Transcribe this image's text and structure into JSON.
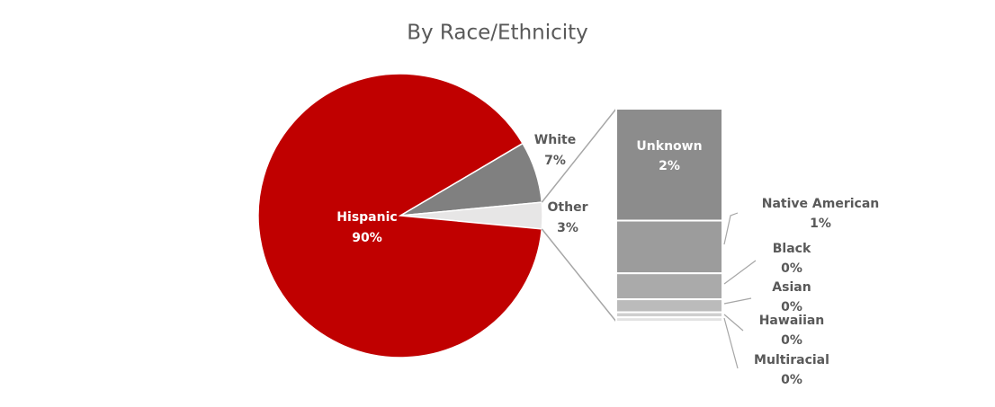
{
  "chart_data": {
    "type": "pie-of-bar",
    "title": "By Race/Ethnicity",
    "categories": [
      "Hispanic",
      "White",
      "Other"
    ],
    "values": [
      90,
      7,
      3
    ],
    "value_labels": [
      "90%",
      "7%",
      "3%"
    ],
    "colors": [
      "#c00000",
      "#808080",
      "#e7e6e6"
    ],
    "bar": {
      "categories": [
        "Unknown",
        "Native American",
        "Black",
        "Asian",
        "Hawaiian",
        "Multiracial"
      ],
      "values": [
        1.55,
        0.73,
        0.36,
        0.18,
        0.07,
        0.06
      ],
      "value_labels": [
        "2%",
        "1%",
        "0%",
        "0%",
        "0%",
        "0%"
      ],
      "colors": [
        "#8c8c8c",
        "#9c9c9c",
        "#aaaaaa",
        "#bbbbbb",
        "#cfcfcf",
        "#e2e2e2"
      ]
    }
  }
}
